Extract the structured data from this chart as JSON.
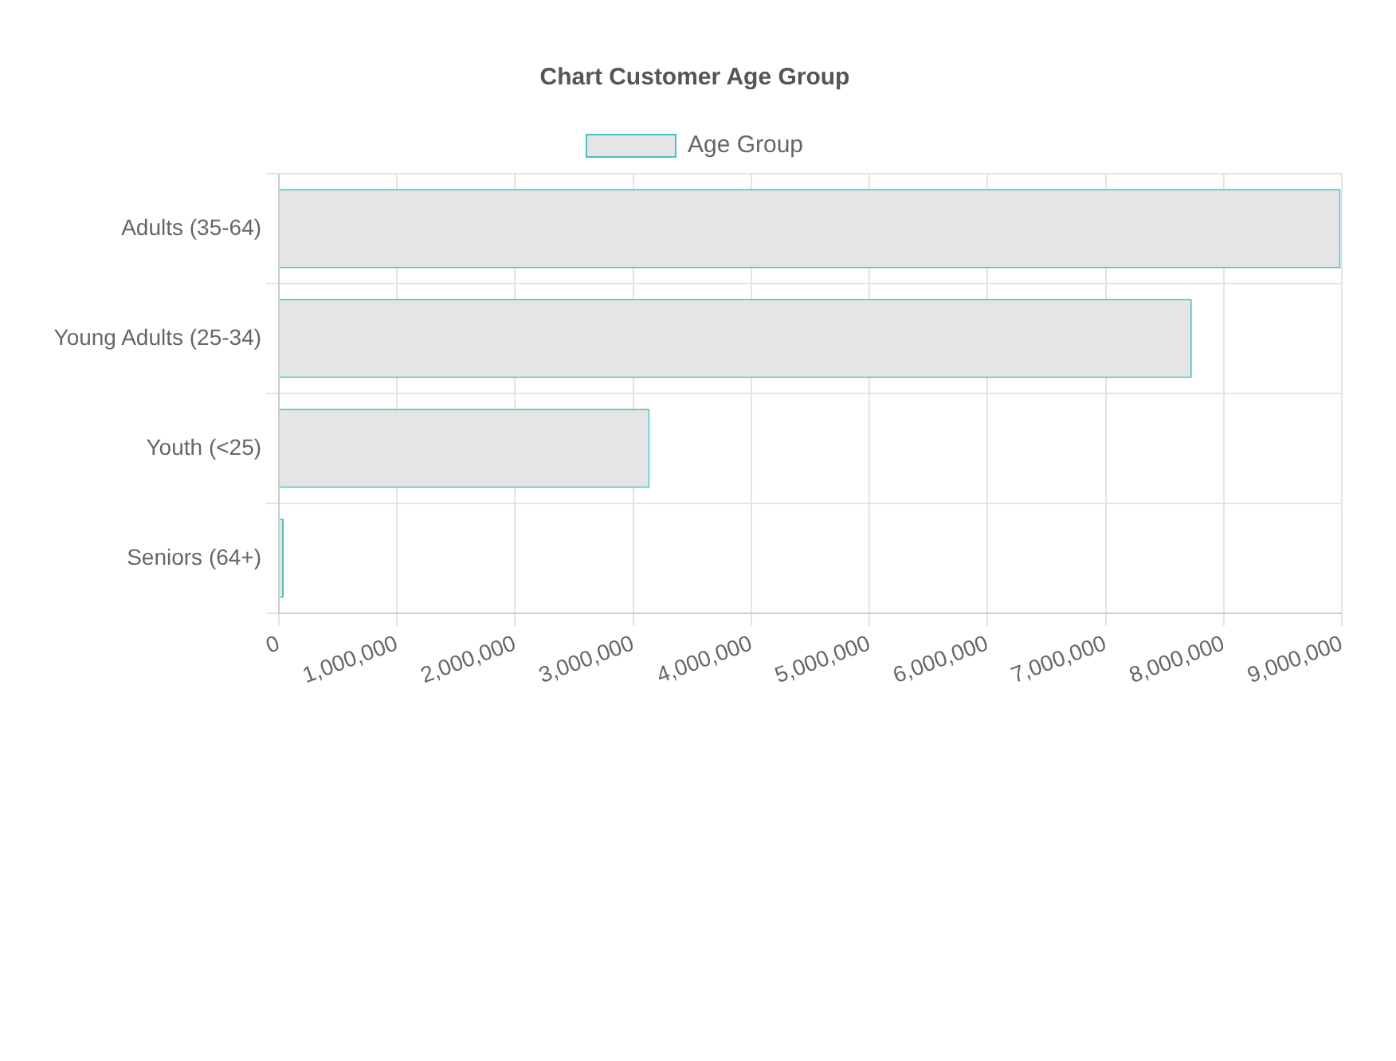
{
  "chart_data": {
    "type": "bar",
    "orientation": "horizontal",
    "title": "Chart Customer Age Group",
    "categories": [
      "Adults (35-64)",
      "Young Adults (25-34)",
      "Youth (<25)",
      "Seniors (64+)"
    ],
    "series": [
      {
        "name": "Age Group",
        "color": "#e5e5e5",
        "values": [
          8990000,
          7730000,
          3140000,
          40000
        ]
      }
    ],
    "xlim": [
      0,
      9000000
    ],
    "xticks": [
      {
        "value": 0,
        "label": "0"
      },
      {
        "value": 1000000,
        "label": "1,000,000"
      },
      {
        "value": 2000000,
        "label": "2,000,000"
      },
      {
        "value": 3000000,
        "label": "3,000,000"
      },
      {
        "value": 4000000,
        "label": "4,000,000"
      },
      {
        "value": 5000000,
        "label": "5,000,000"
      },
      {
        "value": 6000000,
        "label": "6,000,000"
      },
      {
        "value": 7000000,
        "label": "7,000,000"
      },
      {
        "value": 8000000,
        "label": "8,000,000"
      },
      {
        "value": 9000000,
        "label": "9,000,000"
      }
    ],
    "grid": true,
    "legend": "top"
  }
}
